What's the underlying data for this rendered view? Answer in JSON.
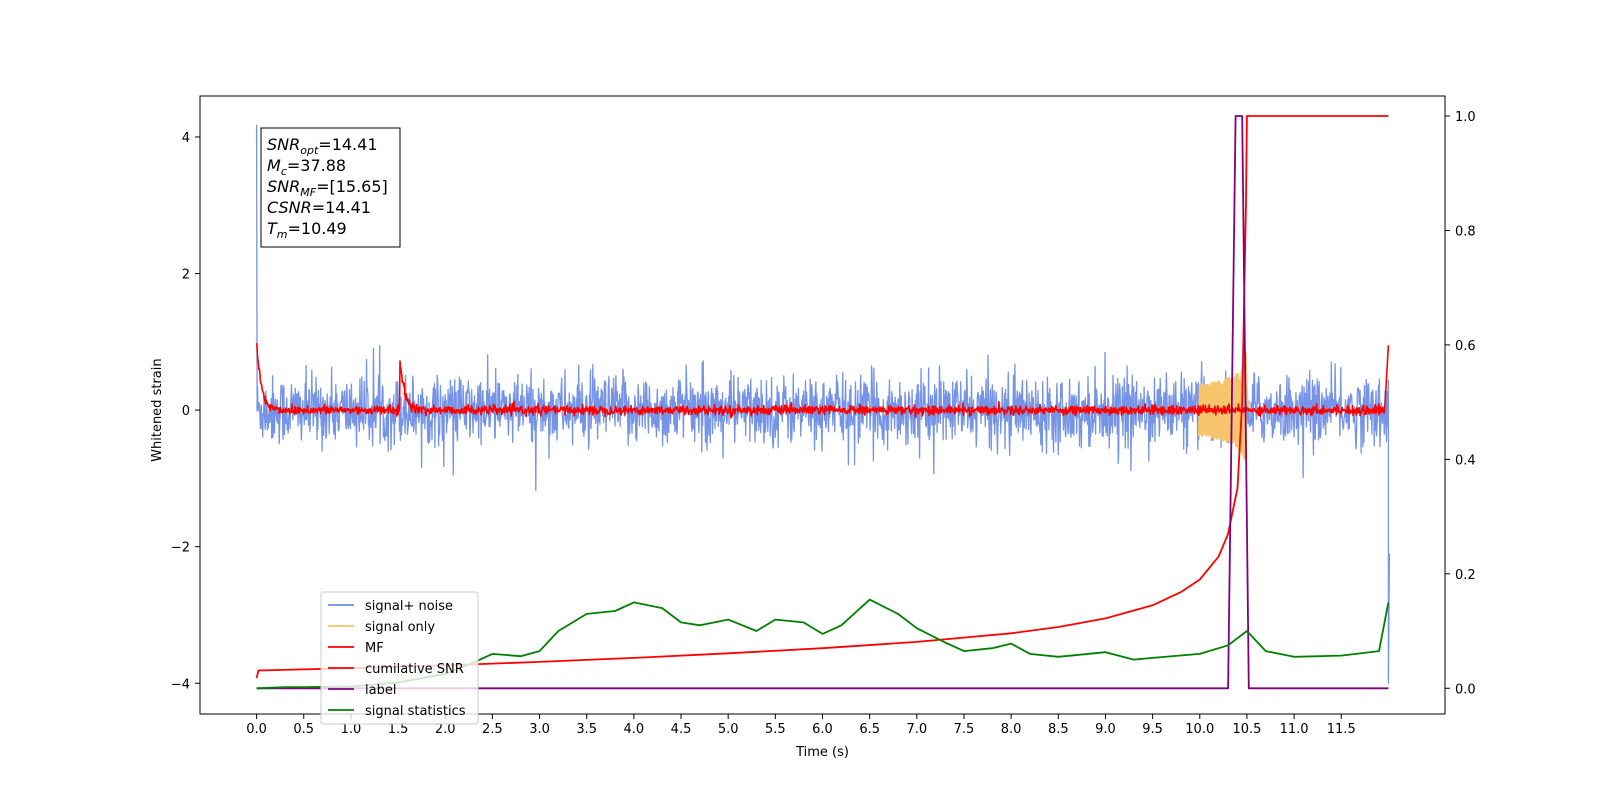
{
  "chart_data": {
    "type": "line",
    "xlabel": "Time (s)",
    "ylabel": "Whitened strain",
    "xlim": [
      -0.6,
      12.6
    ],
    "ylim": [
      -4.45,
      4.6
    ],
    "y2lim": [
      -0.045,
      1.035
    ],
    "xticks": [
      "0.0",
      "0.5",
      "1.0",
      "1.5",
      "2.0",
      "2.5",
      "3.0",
      "3.5",
      "4.0",
      "4.5",
      "5.0",
      "5.5",
      "6.0",
      "6.5",
      "7.0",
      "7.5",
      "8.0",
      "8.5",
      "9.0",
      "9.5",
      "10.0",
      "10.5",
      "11.0",
      "11.5"
    ],
    "yticks": [
      "4",
      "2",
      "0",
      "−2",
      "−4"
    ],
    "y2ticks": [
      "1.0",
      "0.8",
      "0.6",
      "0.4",
      "0.2",
      "0.0"
    ],
    "annotations": [
      {
        "sym": "SNR",
        "sub": "opt",
        "value": "=14.41"
      },
      {
        "sym": "M",
        "sub": "c",
        "value": "=37.88"
      },
      {
        "sym": "SNR",
        "sub": "MF",
        "value": "=[15.65]"
      },
      {
        "sym": "CSNR",
        "sub": "",
        "value": "=14.41"
      },
      {
        "sym": "T",
        "sub": "m",
        "value": "=10.49"
      }
    ],
    "legend_position": "lower-left",
    "series": [
      {
        "name": "signal+ noise",
        "color": "#6f8ee6",
        "axis": "left",
        "kind": "noise",
        "amplitude": 0.45,
        "spikes": [
          [
            0.0,
            4.18
          ],
          [
            12.0,
            -4.0
          ],
          [
            12.01,
            -2.1
          ]
        ]
      },
      {
        "name": "signal only",
        "color": "#f5c46b",
        "axis": "left",
        "kind": "chirp",
        "t_merge": 10.49
      },
      {
        "name": "MF",
        "color": "#ff0000",
        "axis": "left",
        "kind": "noise",
        "amplitude": 0.06,
        "bumps": [
          [
            0.0,
            1.0
          ],
          [
            1.52,
            0.72
          ],
          [
            12.0,
            0.95
          ]
        ]
      },
      {
        "name": "cumilative SNR",
        "color": "#ff0000",
        "axis": "right",
        "x": [
          0.0,
          0.02,
          1.0,
          2.0,
          3.0,
          4.0,
          5.0,
          6.0,
          7.0,
          8.0,
          8.5,
          9.0,
          9.5,
          9.8,
          10.0,
          10.2,
          10.3,
          10.4,
          10.45,
          10.49,
          10.5,
          12.0
        ],
        "y": [
          0.018,
          0.031,
          0.035,
          0.04,
          0.046,
          0.053,
          0.061,
          0.07,
          0.081,
          0.096,
          0.107,
          0.122,
          0.145,
          0.168,
          0.19,
          0.23,
          0.27,
          0.35,
          0.5,
          0.85,
          1.0,
          1.0
        ]
      },
      {
        "name": "label",
        "color": "#800080",
        "axis": "right",
        "x": [
          0.0,
          10.3,
          10.38,
          10.45,
          10.52,
          12.0
        ],
        "y": [
          0.0,
          0.0,
          1.0,
          1.0,
          0.0,
          0.0
        ]
      },
      {
        "name": "signal statistics",
        "color": "#008000",
        "axis": "right",
        "x": [
          0.0,
          0.3,
          0.5,
          1.0,
          1.5,
          2.0,
          2.3,
          2.5,
          2.8,
          3.0,
          3.2,
          3.5,
          3.8,
          4.0,
          4.3,
          4.5,
          4.7,
          5.0,
          5.3,
          5.5,
          5.8,
          6.0,
          6.2,
          6.5,
          6.8,
          7.0,
          7.3,
          7.5,
          7.8,
          8.0,
          8.2,
          8.5,
          9.0,
          9.3,
          9.5,
          10.0,
          10.3,
          10.5,
          10.7,
          11.0,
          11.5,
          11.9,
          12.0
        ],
        "y": [
          0.0,
          0.002,
          0.002,
          0.003,
          0.01,
          0.025,
          0.045,
          0.06,
          0.056,
          0.065,
          0.1,
          0.13,
          0.135,
          0.15,
          0.14,
          0.115,
          0.11,
          0.12,
          0.1,
          0.12,
          0.115,
          0.095,
          0.11,
          0.155,
          0.13,
          0.105,
          0.08,
          0.065,
          0.07,
          0.078,
          0.06,
          0.055,
          0.063,
          0.05,
          0.053,
          0.06,
          0.075,
          0.1,
          0.065,
          0.055,
          0.057,
          0.065,
          0.15
        ]
      }
    ]
  }
}
